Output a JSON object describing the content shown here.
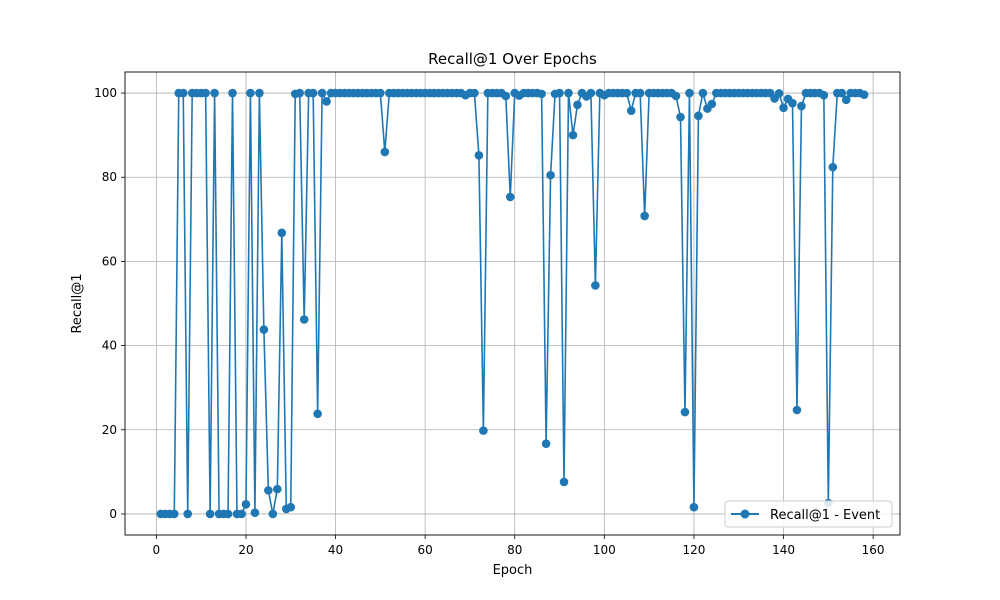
{
  "chart_data": {
    "type": "line",
    "title": "Recall@1 Over Epochs",
    "xlabel": "Epoch",
    "ylabel": "Recall@1",
    "xlim": [
      -7,
      166
    ],
    "ylim": [
      -5,
      105
    ],
    "xticks": [
      0,
      20,
      40,
      60,
      80,
      100,
      120,
      140,
      160
    ],
    "yticks": [
      0,
      20,
      40,
      60,
      80,
      100
    ],
    "grid": true,
    "legend_position": "lower-right",
    "colors": {
      "series": "#1f77b4",
      "grid": "#b0b0b0"
    },
    "series": [
      {
        "name": "Recall@1 - Event",
        "marker": "circle",
        "x": [
          1,
          2,
          3,
          4,
          5,
          6,
          7,
          8,
          9,
          10,
          11,
          12,
          13,
          14,
          15,
          16,
          17,
          18,
          19,
          20,
          21,
          22,
          23,
          24,
          25,
          26,
          27,
          28,
          29,
          30,
          31,
          32,
          33,
          34,
          35,
          36,
          37,
          38,
          39,
          40,
          41,
          42,
          43,
          44,
          45,
          46,
          47,
          48,
          49,
          50,
          51,
          52,
          53,
          54,
          55,
          56,
          57,
          58,
          59,
          60,
          61,
          62,
          63,
          64,
          65,
          66,
          67,
          68,
          69,
          70,
          71,
          72,
          73,
          74,
          75,
          76,
          77,
          78,
          79,
          80,
          81,
          82,
          83,
          84,
          85,
          86,
          87,
          88,
          89,
          90,
          91,
          92,
          93,
          94,
          95,
          96,
          97,
          98,
          99,
          100,
          101,
          102,
          103,
          104,
          105,
          106,
          107,
          108,
          109,
          110,
          111,
          112,
          113,
          114,
          115,
          116,
          117,
          118,
          119,
          120,
          121,
          122,
          123,
          124,
          125,
          126,
          127,
          128,
          129,
          130,
          131,
          132,
          133,
          134,
          135,
          136,
          137,
          138,
          139,
          140,
          141,
          142,
          143,
          144,
          145,
          146,
          147,
          148,
          149,
          150,
          151,
          152,
          153,
          154,
          155,
          156,
          157,
          158
        ],
        "y": [
          0,
          0,
          0,
          0,
          100,
          100,
          0,
          100,
          100,
          100,
          100,
          0,
          100,
          0,
          0,
          0,
          100,
          0,
          0,
          2.3,
          100,
          0.3,
          100,
          43.8,
          5.6,
          0,
          5.9,
          66.8,
          1.2,
          1.6,
          99.8,
          100,
          46.2,
          100,
          100,
          23.8,
          100,
          98,
          100,
          100,
          100,
          100,
          100,
          100,
          100,
          100,
          100,
          100,
          100,
          100,
          86,
          100,
          100,
          100,
          100,
          100,
          100,
          100,
          100,
          100,
          100,
          100,
          100,
          100,
          100,
          100,
          100,
          100,
          99.5,
          100,
          100,
          85.2,
          19.8,
          100,
          100,
          100,
          100,
          99.3,
          75.3,
          100,
          99.4,
          100,
          100,
          100,
          100,
          99.8,
          16.7,
          80.5,
          99.8,
          100,
          7.6,
          100,
          90,
          97.2,
          100,
          99.2,
          100,
          54.3,
          100,
          99.5,
          100,
          100,
          100,
          100,
          100,
          95.8,
          100,
          100,
          70.8,
          100,
          100,
          100,
          100,
          100,
          100,
          99.3,
          94.3,
          24.2,
          100,
          1.6,
          94.6,
          100,
          96.3,
          97.4,
          100,
          100,
          100,
          100,
          100,
          100,
          100,
          100,
          100,
          100,
          100,
          100,
          100,
          98.7,
          99.9,
          96.5,
          98.6,
          97.6,
          24.7,
          96.9,
          100,
          100,
          100,
          100,
          99.5,
          2.6,
          82.4,
          100,
          100,
          98.4,
          100,
          100,
          100,
          99.6
        ]
      }
    ]
  }
}
